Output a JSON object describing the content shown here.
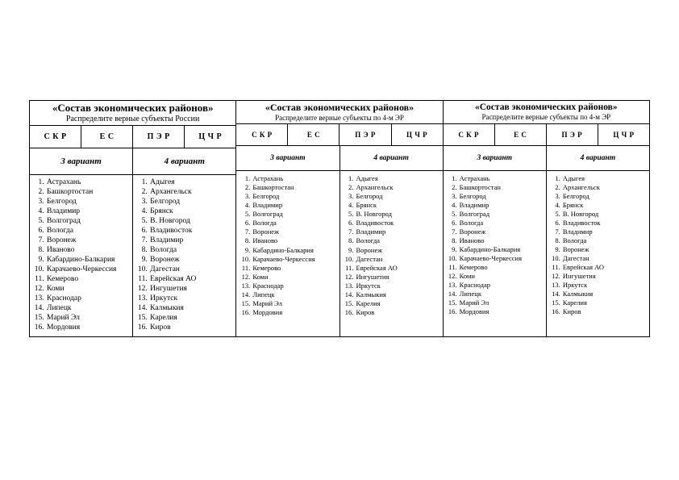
{
  "column_headers": [
    "С К Р",
    "Е С",
    "П Э Р",
    "Ц Ч Р"
  ],
  "variant_labels": {
    "v3": "3 вариант",
    "v4": "4 вариант"
  },
  "blocks": [
    {
      "title": "«Состав экономических районов»",
      "subtitle": "Распределите верные субъекты России"
    },
    {
      "title": "«Состав экономических районов»",
      "subtitle": "Распределите верные субъекты по 4-м ЭР"
    },
    {
      "title": "«Состав экономических районов»",
      "subtitle": "Распределите верные субъекты по 4-м ЭР"
    }
  ],
  "list_v3": [
    "Астрахань",
    "Башкортостан",
    "Белгород",
    "Владимир",
    "Волгоград",
    "Вологда",
    "Воронеж",
    "Иваново",
    "Кабардино-Балкария",
    "Карачаево-Черкессия",
    "Кемерово",
    "Коми",
    "Краснодар",
    "Липецк",
    "Марий Эл",
    "Мордовия"
  ],
  "list_v4": [
    "Адыгея",
    "Архангельск",
    "Белгород",
    "Брянск",
    "В. Новгород",
    "Владивосток",
    "Владимир",
    "Вологда",
    "Воронеж",
    "Дагестан",
    "Еврейская АО",
    "Ингушетия",
    "Иркутск",
    "Калмыкия",
    "Карелия",
    "Киров"
  ],
  "colors": {
    "text": "#000000",
    "background": "#ffffff",
    "border": "#000000"
  },
  "typography": {
    "family": "Times New Roman",
    "title_pt": 13,
    "body_pt": 10,
    "list_pt": 9.5
  }
}
